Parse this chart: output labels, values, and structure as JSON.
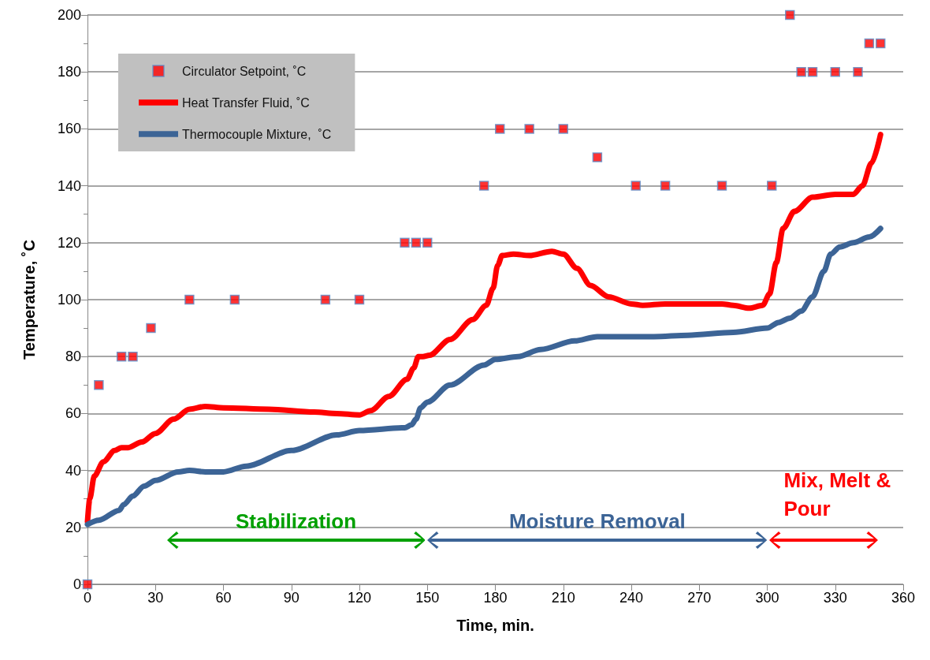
{
  "chart_data": {
    "type": "line",
    "xlabel": "Time, min.",
    "ylabel": "Temperature, ˚C",
    "xlim": [
      0,
      360
    ],
    "xticks": [
      0,
      30,
      60,
      90,
      120,
      150,
      180,
      210,
      240,
      270,
      300,
      330,
      360
    ],
    "ylim": [
      0,
      200
    ],
    "yticks": [
      0,
      20,
      40,
      60,
      80,
      100,
      120,
      140,
      160,
      180,
      200
    ],
    "grid": "y",
    "legend": "top left",
    "line_style": "solid",
    "series": [
      {
        "name": "Circulator Setpoint, ˚C",
        "type": "scatter",
        "marker": "square",
        "color": "#ff0000",
        "x": [
          0,
          5,
          15,
          20,
          28,
          45,
          65,
          105,
          120,
          140,
          145,
          150,
          175,
          182,
          195,
          210,
          225,
          242,
          255,
          280,
          302,
          310,
          315,
          320,
          330,
          340,
          345,
          350
        ],
        "values": [
          0,
          70,
          80,
          80,
          90,
          100,
          100,
          100,
          100,
          120,
          120,
          120,
          140,
          160,
          160,
          160,
          150,
          140,
          140,
          140,
          140,
          200,
          180,
          180,
          180,
          180,
          190,
          190
        ]
      },
      {
        "name": "Heat Transfer Fluid, ˚C",
        "marker": "none",
        "color": "#ff0000",
        "x": [
          0,
          1,
          3,
          7,
          12,
          15,
          18,
          24,
          30,
          38,
          45,
          52,
          60,
          80,
          100,
          110,
          120,
          125,
          133,
          141,
          144,
          146,
          148,
          151,
          160,
          170,
          176,
          179,
          181,
          183,
          188,
          195,
          205,
          210,
          216,
          222,
          230,
          240,
          245,
          255,
          270,
          280,
          285,
          292,
          298,
          301,
          304,
          307,
          312,
          320,
          330,
          338,
          342,
          346,
          350
        ],
        "values": [
          22,
          30,
          38,
          43,
          47,
          48,
          48,
          50,
          53,
          58,
          61.5,
          62.5,
          62,
          61.5,
          60.5,
          60,
          59.5,
          61,
          66,
          72,
          76,
          80,
          80,
          80.5,
          86,
          93,
          98,
          104,
          112,
          115.5,
          116,
          115.5,
          117,
          116,
          111,
          105,
          101,
          98.5,
          98,
          98.5,
          98.5,
          98.5,
          98,
          97,
          98,
          102,
          113,
          125,
          131,
          136,
          137,
          137,
          140,
          148,
          158
        ]
      },
      {
        "name": "Thermocouple Mixture,  ˚C",
        "marker": "none",
        "color": "#3c6496",
        "x": [
          0,
          5,
          14,
          16,
          20,
          25,
          30,
          40,
          45,
          52,
          60,
          70,
          90,
          110,
          120,
          140,
          143,
          145,
          147,
          150,
          160,
          175,
          180,
          190,
          200,
          215,
          225,
          235,
          250,
          265,
          285,
          300,
          305,
          310,
          315,
          320,
          325,
          328,
          332,
          338,
          345,
          350
        ],
        "values": [
          21,
          22.5,
          26,
          28,
          31,
          34.5,
          36.5,
          39.5,
          40,
          39.5,
          39.5,
          41.5,
          47,
          52.5,
          54,
          55,
          56,
          58,
          62,
          64,
          70,
          77,
          79,
          80,
          82.5,
          85.5,
          87,
          87,
          87,
          87.5,
          88.5,
          90,
          92,
          93.5,
          96,
          101,
          110,
          116,
          118.5,
          120,
          122,
          125
        ]
      }
    ],
    "annotations": [
      "Stabilization",
      "Moisture Removal",
      "Mix, Melt & Pour"
    ]
  }
}
